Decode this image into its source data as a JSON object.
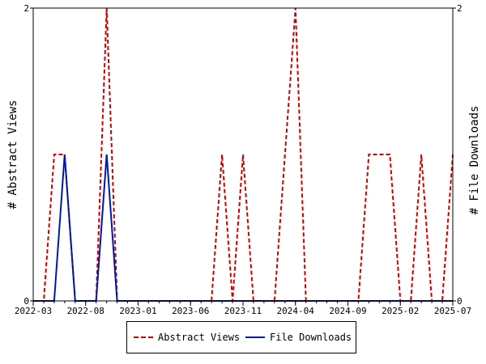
{
  "chart_data": {
    "type": "line",
    "title": "",
    "y_left_label": "# Abstract Views",
    "y_right_label": "# File Downloads",
    "ylim": [
      0,
      2
    ],
    "y_ticks": [
      "0",
      "2"
    ],
    "x_ticks": [
      "2022-03",
      "2022-08",
      "2023-01",
      "2023-06",
      "2023-11",
      "2024-04",
      "2024-09",
      "2025-02",
      "2025-07"
    ],
    "x": [
      "2022-03",
      "2022-04",
      "2022-05",
      "2022-06",
      "2022-07",
      "2022-08",
      "2022-09",
      "2022-10",
      "2022-11",
      "2022-12",
      "2023-01",
      "2023-02",
      "2023-03",
      "2023-04",
      "2023-05",
      "2023-06",
      "2023-07",
      "2023-08",
      "2023-09",
      "2023-10",
      "2023-11",
      "2023-12",
      "2024-01",
      "2024-02",
      "2024-03",
      "2024-04",
      "2024-05",
      "2024-06",
      "2024-07",
      "2024-08",
      "2024-09",
      "2024-10",
      "2024-11",
      "2024-12",
      "2025-01",
      "2025-02",
      "2025-03",
      "2025-04",
      "2025-05",
      "2025-06",
      "2025-07"
    ],
    "series": [
      {
        "name": "Abstract Views",
        "color": "#cc0000",
        "dash": "dashed",
        "values": [
          0,
          0,
          1,
          1,
          0,
          0,
          0,
          2,
          0,
          0,
          0,
          0,
          0,
          0,
          0,
          0,
          0,
          0,
          1,
          0,
          1,
          0,
          0,
          0,
          1,
          2,
          0,
          0,
          0,
          0,
          0,
          0,
          1,
          1,
          1,
          0,
          0,
          1,
          0,
          0,
          1
        ]
      },
      {
        "name": "File Downloads",
        "color": "#0018a8",
        "dash": "solid",
        "values": [
          0,
          0,
          0,
          1,
          0,
          0,
          0,
          1,
          0,
          0,
          0,
          0,
          0,
          0,
          0,
          0,
          0,
          0,
          0,
          0,
          0,
          0,
          0,
          0,
          0,
          0,
          0,
          0,
          0,
          0,
          0,
          0,
          0,
          0,
          0,
          0,
          0,
          0,
          0,
          0,
          0
        ]
      }
    ],
    "legend_position": "bottom"
  }
}
